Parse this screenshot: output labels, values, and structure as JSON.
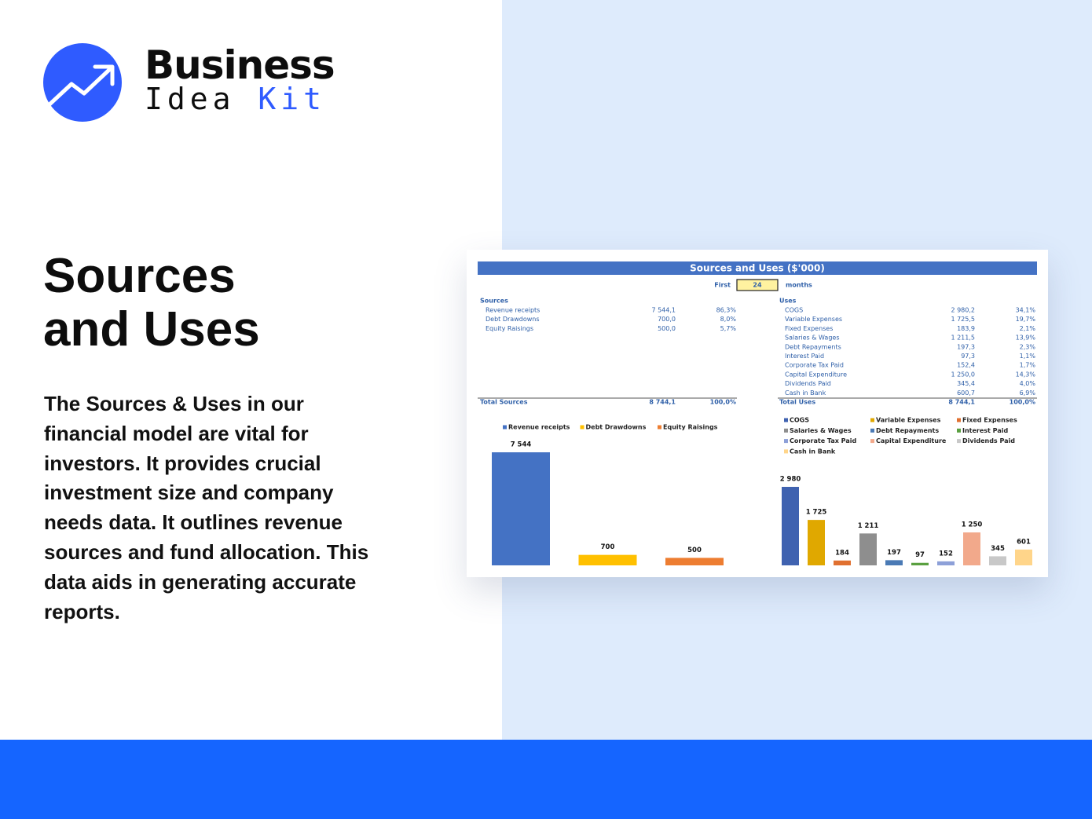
{
  "logo": {
    "word1": "Business",
    "word2": "Idea",
    "word3": "Kit"
  },
  "heading": "Sources and Uses",
  "body": "The Sources & Uses in our financial model are vital for investors. It provides crucial investment size and company needs data. It outlines revenue sources and fund allocation. This data aids in generating accurate reports.",
  "sheet": {
    "title": "Sources and Uses ($'000)",
    "period_label": "First",
    "period_value": "24",
    "period_unit": "months",
    "sources": {
      "header": "Sources",
      "rows": [
        [
          "Revenue receipts",
          "7 544,1",
          "86,3%"
        ],
        [
          "Debt Drawdowns",
          "700,0",
          "8,0%"
        ],
        [
          "Equity Raisings",
          "500,0",
          "5,7%"
        ]
      ],
      "total": [
        "Total Sources",
        "8 744,1",
        "100,0%"
      ]
    },
    "uses": {
      "header": "Uses",
      "rows": [
        [
          "COGS",
          "2 980,2",
          "34,1%"
        ],
        [
          "Variable Expenses",
          "1 725,5",
          "19,7%"
        ],
        [
          "Fixed Expenses",
          "183,9",
          "2,1%"
        ],
        [
          "Salaries & Wages",
          "1 211,5",
          "13,9%"
        ],
        [
          "Debt Repayments",
          "197,3",
          "2,3%"
        ],
        [
          "Interest Paid",
          "97,3",
          "1,1%"
        ],
        [
          "Corporate Tax Paid",
          "152,4",
          "1,7%"
        ],
        [
          "Capital Expenditure",
          "1 250,0",
          "14,3%"
        ],
        [
          "Dividends Paid",
          "345,4",
          "4,0%"
        ],
        [
          "Cash in Bank",
          "600,7",
          "6,9%"
        ]
      ],
      "total": [
        "Total Uses",
        "8 744,1",
        "100,0%"
      ]
    },
    "charts": [
      {
        "type": "bar",
        "categories": [
          "Revenue receipts",
          "Debt Drawdowns",
          "Equity Raisings"
        ],
        "values": [
          7544,
          700,
          500
        ],
        "value_labels": [
          "7 544",
          "700",
          "500"
        ],
        "colors": [
          "#4472c4",
          "#ffc000",
          "#ed7d31"
        ]
      },
      {
        "type": "bar",
        "categories": [
          "COGS",
          "Variable Expenses",
          "Fixed Expenses",
          "Salaries & Wages",
          "Debt Repayments",
          "Interest Paid",
          "Corporate Tax Paid",
          "Capital Expenditure",
          "Dividends Paid",
          "Cash in Bank"
        ],
        "values": [
          2980,
          1725,
          184,
          1211,
          197,
          97,
          152,
          1250,
          345,
          601
        ],
        "value_labels": [
          "2 980",
          "1 725",
          "184",
          "1 211",
          "197",
          "97",
          "152",
          "1 250",
          "345",
          "601"
        ],
        "colors": [
          "#3f62b0",
          "#e0a800",
          "#e07030",
          "#8e8e8e",
          "#4a7ab5",
          "#5aa040",
          "#8da0d8",
          "#f2a98b",
          "#c8c8c8",
          "#ffd58a"
        ]
      }
    ]
  }
}
